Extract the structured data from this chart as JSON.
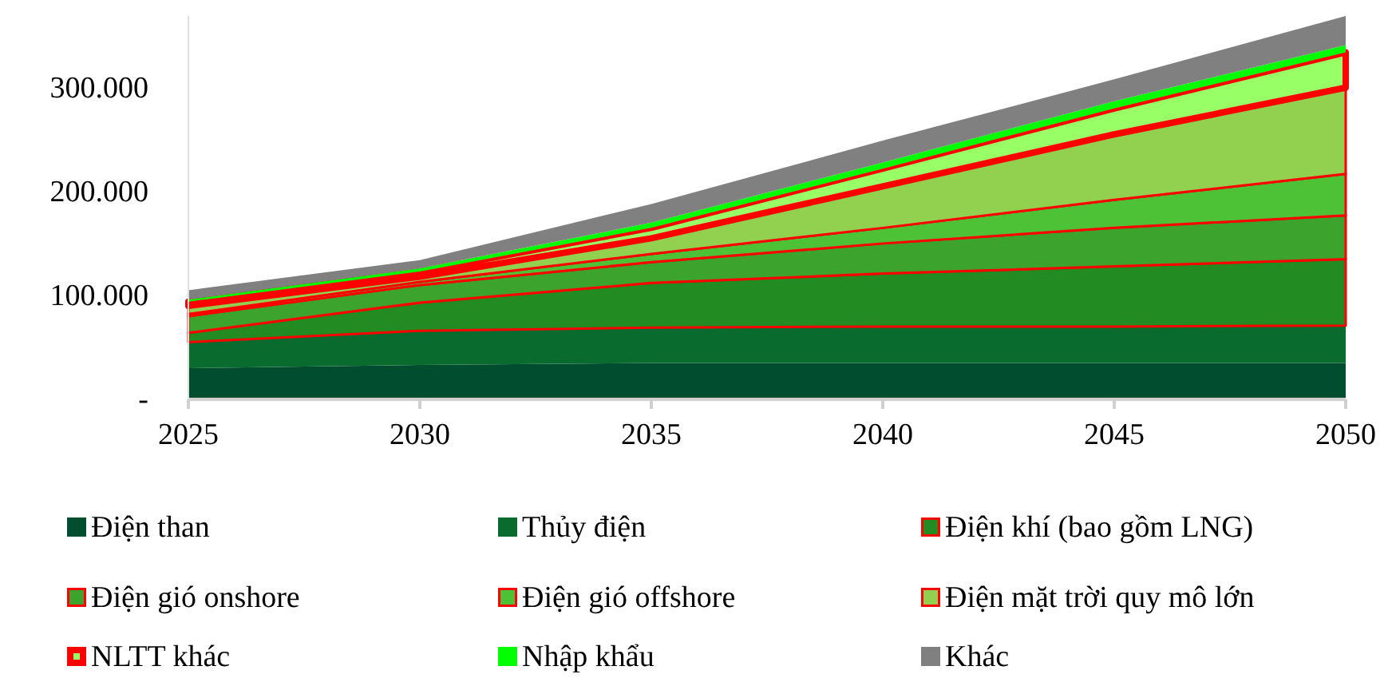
{
  "chart_data": {
    "type": "area",
    "stacked": true,
    "x": [
      2025,
      2030,
      2035,
      2040,
      2045,
      2050
    ],
    "xlim": [
      2025,
      2050
    ],
    "xticks": [
      2025,
      2030,
      2035,
      2040,
      2045,
      2050
    ],
    "ylim": [
      0,
      369000
    ],
    "yticks": [
      {
        "value": 0,
        "label": "-"
      },
      {
        "value": 100000,
        "label": "100.000"
      },
      {
        "value": 200000,
        "label": "200.000"
      },
      {
        "value": 300000,
        "label": "300.000"
      }
    ],
    "grid": false,
    "legend": "bottom",
    "series": [
      {
        "name": "Điện than",
        "color": "#004d30",
        "values": [
          30000,
          33000,
          35000,
          35000,
          35000,
          35000
        ]
      },
      {
        "name": "Thủy điện",
        "color": "#0a6b2e",
        "values": [
          25000,
          33000,
          34000,
          35000,
          35000,
          36000
        ]
      },
      {
        "name": "Điện khí (bao gồm LNG)",
        "color": "#228b22",
        "values": [
          9000,
          27000,
          43000,
          51000,
          58000,
          64000
        ]
      },
      {
        "name": "Điện gió onshore",
        "color": "#3ca32c",
        "values": [
          16000,
          17000,
          20000,
          29000,
          37000,
          42000
        ]
      },
      {
        "name": "Điện gió offshore",
        "color": "#4dc236",
        "values": [
          2000,
          3000,
          8000,
          15000,
          27000,
          40000
        ]
      },
      {
        "name": "Điện mặt trời quy mô lớn",
        "color": "#92d050",
        "values": [
          8000,
          5000,
          15000,
          40000,
          63000,
          83000
        ]
      },
      {
        "name": "NLTT khác",
        "color": "#99ff66",
        "values": [
          4000,
          5000,
          10000,
          17000,
          25000,
          34000
        ]
      },
      {
        "name": "Nhập khẩu",
        "color": "#00ff00",
        "values": [
          2000,
          3000,
          5000,
          6000,
          7000,
          7000
        ]
      },
      {
        "name": "Khác",
        "color": "#808080",
        "values": [
          9000,
          8000,
          18000,
          21000,
          21000,
          28000
        ]
      }
    ]
  }
}
